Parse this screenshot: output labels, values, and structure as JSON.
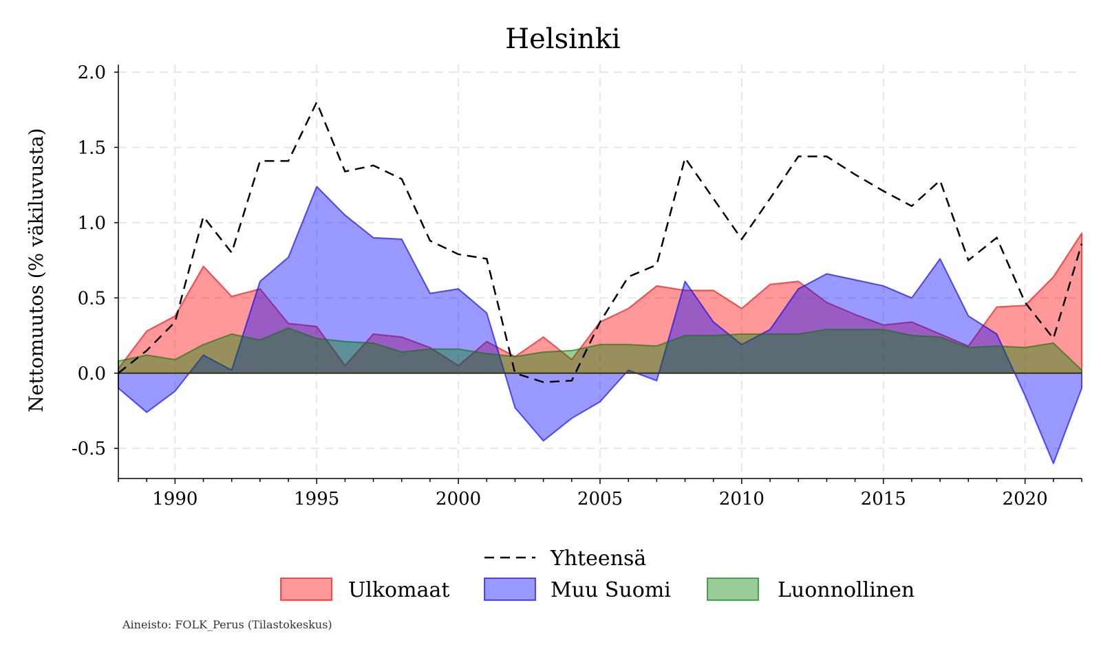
{
  "chart_data": {
    "type": "area",
    "title": "Helsinki",
    "xlabel": "",
    "ylabel": "Nettomuutos (% väkiluvusta)",
    "xlim": [
      1988,
      2022
    ],
    "ylim": [
      -0.7,
      2.05
    ],
    "x_ticks": [
      1990,
      1995,
      2000,
      2005,
      2010,
      2015,
      2020
    ],
    "y_ticks": [
      -0.5,
      0.0,
      0.5,
      1.0,
      1.5,
      2.0
    ],
    "y_tick_labels": [
      "-0.5",
      "0.0",
      "0.5",
      "1.0",
      "1.5",
      "2.0"
    ],
    "grid": true,
    "legend_position": "bottom",
    "years": [
      1988,
      1989,
      1990,
      1991,
      1992,
      1993,
      1994,
      1995,
      1996,
      1997,
      1998,
      1999,
      2000,
      2001,
      2002,
      2003,
      2004,
      2005,
      2006,
      2007,
      2008,
      2009,
      2010,
      2011,
      2012,
      2013,
      2014,
      2015,
      2016,
      2017,
      2018,
      2019,
      2020,
      2021,
      2022
    ],
    "series": [
      {
        "name": "Yhteensä",
        "kind": "line",
        "color": "#000000",
        "values": [
          0.0,
          0.15,
          0.34,
          1.04,
          0.8,
          1.41,
          1.41,
          1.8,
          1.34,
          1.38,
          1.29,
          0.88,
          0.79,
          0.76,
          0.0,
          -0.06,
          -0.05,
          0.34,
          0.64,
          0.72,
          1.43,
          1.16,
          0.89,
          1.16,
          1.44,
          1.44,
          1.32,
          1.21,
          1.11,
          1.28,
          0.75,
          0.9,
          0.47,
          0.23,
          0.86
        ]
      },
      {
        "name": "Ulkomaat",
        "kind": "area",
        "color": "#ff0000",
        "values": [
          0.03,
          0.28,
          0.38,
          0.71,
          0.51,
          0.56,
          0.33,
          0.31,
          0.05,
          0.26,
          0.24,
          0.17,
          0.05,
          0.21,
          0.11,
          0.24,
          0.09,
          0.34,
          0.43,
          0.58,
          0.55,
          0.55,
          0.43,
          0.59,
          0.61,
          0.47,
          0.39,
          0.32,
          0.34,
          0.26,
          0.18,
          0.44,
          0.45,
          0.64,
          0.93
        ]
      },
      {
        "name": "Muu Suomi",
        "kind": "area",
        "color": "#0000ff",
        "values": [
          -0.1,
          -0.26,
          -0.12,
          0.12,
          0.02,
          0.61,
          0.77,
          1.24,
          1.05,
          0.9,
          0.89,
          0.53,
          0.56,
          0.4,
          -0.23,
          -0.45,
          -0.3,
          -0.19,
          0.02,
          -0.05,
          0.61,
          0.34,
          0.19,
          0.29,
          0.56,
          0.66,
          0.62,
          0.58,
          0.5,
          0.76,
          0.38,
          0.26,
          -0.15,
          -0.6,
          -0.1
        ]
      },
      {
        "name": "Luonnollinen",
        "kind": "area",
        "color": "#008000",
        "values": [
          0.08,
          0.12,
          0.09,
          0.19,
          0.26,
          0.22,
          0.3,
          0.23,
          0.21,
          0.2,
          0.14,
          0.16,
          0.16,
          0.13,
          0.11,
          0.14,
          0.15,
          0.19,
          0.19,
          0.18,
          0.25,
          0.25,
          0.26,
          0.26,
          0.26,
          0.29,
          0.29,
          0.29,
          0.25,
          0.24,
          0.17,
          0.18,
          0.17,
          0.2,
          0.02
        ]
      }
    ],
    "source_note": "Aineisto: FOLK_Perus (Tilastokeskus)"
  }
}
